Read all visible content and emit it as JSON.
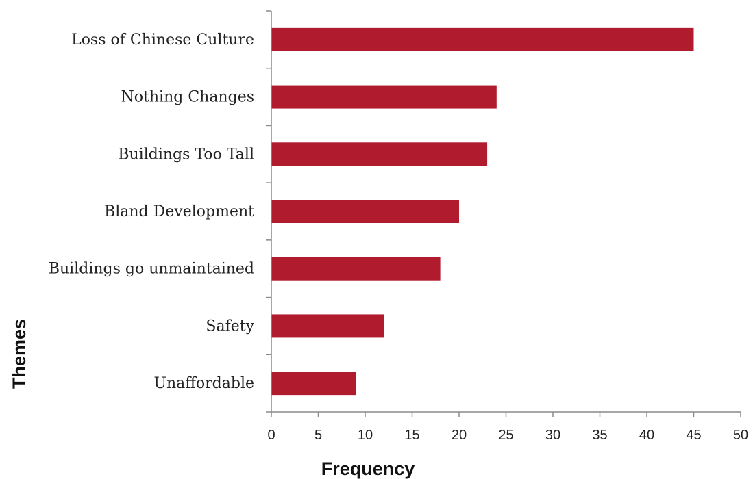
{
  "chart_data": {
    "type": "bar",
    "orientation": "horizontal",
    "categories": [
      "Loss of Chinese Culture",
      "Nothing Changes",
      "Buildings Too Tall",
      "Bland Development",
      "Buildings go unmaintained",
      "Safety",
      "Unaffordable"
    ],
    "values": [
      45,
      24,
      23,
      20,
      18,
      12,
      9
    ],
    "xlabel": "Frequency",
    "ylabel": "Themes",
    "xlim": [
      0,
      50
    ],
    "xticks": [
      "0",
      "5",
      "10",
      "15",
      "20",
      "25",
      "30",
      "35",
      "40",
      "45",
      "50"
    ],
    "grid": false,
    "legend": "none",
    "colors": {
      "bar": "#b01c2e"
    }
  }
}
